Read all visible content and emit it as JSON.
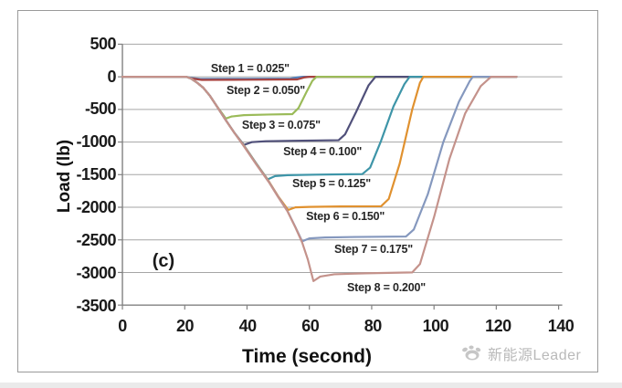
{
  "figure": {
    "subfigure_label": "(c)",
    "watermark_text": "新能源Leader"
  },
  "colors": {
    "background": "#FFFFFF",
    "frame_border": "#9A9A9A",
    "grid": "#A6A6A6",
    "axis": "#808080",
    "tick_text": "#1A1A1A",
    "annotation_text": "#262626",
    "watermark": "#B9B9B9"
  },
  "chart_data": {
    "type": "line",
    "title": "",
    "xlabel": "Time (second)",
    "ylabel": "Load (lb)",
    "xlim": [
      0,
      140
    ],
    "ylim": [
      -3500,
      500
    ],
    "xticks": [
      0,
      20,
      40,
      60,
      80,
      100,
      120,
      140
    ],
    "yticks": [
      500,
      0,
      -500,
      -1000,
      -1500,
      -2000,
      -2500,
      -3000,
      -3500
    ],
    "grid": "horizontal-only",
    "legend": "none",
    "description": "Eight-step indentation load vs time; all steps share a common loading ramp starting near t=20 s, hold at stepped plateau loads, then unload back to 0 lb at staggered times.",
    "series": [
      {
        "name": "Step 1",
        "depth_in": "0.025\"",
        "plateau_load_lb": -30,
        "color": "#4F81BD",
        "points": [
          [
            0,
            0
          ],
          [
            20.5,
            0
          ],
          [
            22.5,
            -20
          ],
          [
            25,
            -32
          ],
          [
            40,
            -30
          ],
          [
            54,
            -28
          ],
          [
            56.5,
            -6
          ],
          [
            58,
            0
          ],
          [
            126.5,
            0
          ]
        ]
      },
      {
        "name": "Step 2",
        "depth_in": "0.050\"",
        "plateau_load_lb": -42,
        "color": "#A8423F",
        "points": [
          [
            0,
            0
          ],
          [
            20.5,
            0
          ],
          [
            22.5,
            -28
          ],
          [
            25.5,
            -48
          ],
          [
            40,
            -44
          ],
          [
            56,
            -40
          ],
          [
            58.5,
            -8
          ],
          [
            60,
            0
          ],
          [
            126.5,
            0
          ]
        ]
      },
      {
        "name": "Step 3",
        "depth_in": "0.075\"",
        "plateau_load_lb": -575,
        "color": "#9BBB59",
        "points": [
          [
            0,
            0
          ],
          [
            20.5,
            0
          ],
          [
            22,
            -25
          ],
          [
            24,
            -90
          ],
          [
            26,
            -170
          ],
          [
            28,
            -285
          ],
          [
            30,
            -430
          ],
          [
            32,
            -560
          ],
          [
            33.2,
            -640
          ],
          [
            35,
            -608
          ],
          [
            39,
            -588
          ],
          [
            47,
            -578
          ],
          [
            54.5,
            -572
          ],
          [
            56.5,
            -480
          ],
          [
            59,
            -240
          ],
          [
            61,
            -60
          ],
          [
            62.3,
            0
          ],
          [
            126.5,
            0
          ]
        ]
      },
      {
        "name": "Step 4",
        "depth_in": "0.100\"",
        "plateau_load_lb": -975,
        "color": "#50507A",
        "points": [
          [
            0,
            0
          ],
          [
            20.5,
            0
          ],
          [
            22,
            -25
          ],
          [
            24,
            -90
          ],
          [
            26,
            -170
          ],
          [
            28,
            -285
          ],
          [
            30,
            -430
          ],
          [
            33,
            -650
          ],
          [
            36,
            -862
          ],
          [
            39,
            -1045
          ],
          [
            41.5,
            -1002
          ],
          [
            46,
            -988
          ],
          [
            55,
            -980
          ],
          [
            69.4,
            -972
          ],
          [
            71.5,
            -880
          ],
          [
            75,
            -540
          ],
          [
            79,
            -130
          ],
          [
            81.2,
            0
          ],
          [
            126.5,
            0
          ]
        ]
      },
      {
        "name": "Step 5",
        "depth_in": "0.125\"",
        "plateau_load_lb": -1495,
        "color": "#3E95A8",
        "points": [
          [
            0,
            0
          ],
          [
            20.5,
            0
          ],
          [
            22,
            -25
          ],
          [
            24,
            -90
          ],
          [
            26,
            -170
          ],
          [
            28,
            -285
          ],
          [
            30,
            -430
          ],
          [
            33,
            -650
          ],
          [
            36,
            -862
          ],
          [
            39,
            -1052
          ],
          [
            43,
            -1330
          ],
          [
            46.6,
            -1572
          ],
          [
            49,
            -1522
          ],
          [
            53,
            -1508
          ],
          [
            62,
            -1500
          ],
          [
            77,
            -1492
          ],
          [
            79.5,
            -1392
          ],
          [
            83,
            -982
          ],
          [
            87,
            -452
          ],
          [
            90.5,
            -112
          ],
          [
            92.2,
            0
          ],
          [
            126.5,
            0
          ]
        ]
      },
      {
        "name": "Step 6",
        "depth_in": "0.150\"",
        "plateau_load_lb": -1985,
        "color": "#E0912F",
        "points": [
          [
            0,
            0
          ],
          [
            20.5,
            0
          ],
          [
            22,
            -25
          ],
          [
            24,
            -90
          ],
          [
            26,
            -170
          ],
          [
            28,
            -285
          ],
          [
            30,
            -430
          ],
          [
            33,
            -650
          ],
          [
            36,
            -862
          ],
          [
            39,
            -1056
          ],
          [
            43,
            -1336
          ],
          [
            47,
            -1602
          ],
          [
            50,
            -1832
          ],
          [
            53.2,
            -2042
          ],
          [
            55.5,
            -2002
          ],
          [
            60,
            -1994
          ],
          [
            70,
            -1988
          ],
          [
            83,
            -1984
          ],
          [
            85.5,
            -1872
          ],
          [
            89,
            -1332
          ],
          [
            93,
            -502
          ],
          [
            95.5,
            -92
          ],
          [
            96.6,
            0
          ],
          [
            126.5,
            0
          ]
        ]
      },
      {
        "name": "Step 7",
        "depth_in": "0.175\"",
        "plateau_load_lb": -2450,
        "color": "#8598BE",
        "points": [
          [
            0,
            0
          ],
          [
            20.5,
            0
          ],
          [
            22,
            -25
          ],
          [
            24,
            -90
          ],
          [
            26,
            -170
          ],
          [
            28,
            -285
          ],
          [
            30,
            -430
          ],
          [
            33,
            -650
          ],
          [
            36,
            -862
          ],
          [
            39,
            -1060
          ],
          [
            43,
            -1340
          ],
          [
            47,
            -1608
          ],
          [
            50,
            -1838
          ],
          [
            53,
            -2058
          ],
          [
            55.5,
            -2302
          ],
          [
            57.7,
            -2522
          ],
          [
            60,
            -2478
          ],
          [
            65,
            -2464
          ],
          [
            75,
            -2456
          ],
          [
            91,
            -2448
          ],
          [
            93.5,
            -2342
          ],
          [
            98,
            -1802
          ],
          [
            103,
            -1002
          ],
          [
            108,
            -382
          ],
          [
            111.5,
            -62
          ],
          [
            112.5,
            0
          ],
          [
            126.5,
            0
          ]
        ]
      },
      {
        "name": "Step 8",
        "depth_in": "0.200\"",
        "plateau_load_lb": -3000,
        "color": "#C4928B",
        "points": [
          [
            0,
            0
          ],
          [
            20.5,
            0
          ],
          [
            22,
            -25
          ],
          [
            24,
            -90
          ],
          [
            26,
            -170
          ],
          [
            28,
            -285
          ],
          [
            30,
            -430
          ],
          [
            33,
            -652
          ],
          [
            36,
            -864
          ],
          [
            39,
            -1066
          ],
          [
            43,
            -1346
          ],
          [
            47,
            -1614
          ],
          [
            50,
            -1844
          ],
          [
            53,
            -2064
          ],
          [
            55.5,
            -2308
          ],
          [
            57.7,
            -2540
          ],
          [
            59.5,
            -2800
          ],
          [
            61.3,
            -3132
          ],
          [
            63.5,
            -3062
          ],
          [
            68,
            -3028
          ],
          [
            78,
            -3012
          ],
          [
            93,
            -2998
          ],
          [
            95.5,
            -2872
          ],
          [
            100,
            -2152
          ],
          [
            105,
            -1252
          ],
          [
            110,
            -562
          ],
          [
            115,
            -142
          ],
          [
            118.3,
            0
          ],
          [
            126.5,
            0
          ]
        ]
      }
    ],
    "annotations": [
      {
        "text": "Step 1 = 0.025\"",
        "t": 40.8,
        "load": 118
      },
      {
        "text": "Step 2 = 0.050\"",
        "t": 45.8,
        "load": -216
      },
      {
        "text": "Step 3 = 0.075\"",
        "t": 50.7,
        "load": -745
      },
      {
        "text": "Step 4 = 0.100\"",
        "t": 63.9,
        "load": -1149
      },
      {
        "text": "Step 5 = 0.125\"",
        "t": 66.8,
        "load": -1637
      },
      {
        "text": "Step 6 = 0.150\"",
        "t": 71.2,
        "load": -2138
      },
      {
        "text": "Step 7 = 0.175\"",
        "t": 80.2,
        "load": -2639
      },
      {
        "text": "Step 8 = 0.200\"",
        "t": 84.3,
        "load": -3225
      }
    ]
  }
}
